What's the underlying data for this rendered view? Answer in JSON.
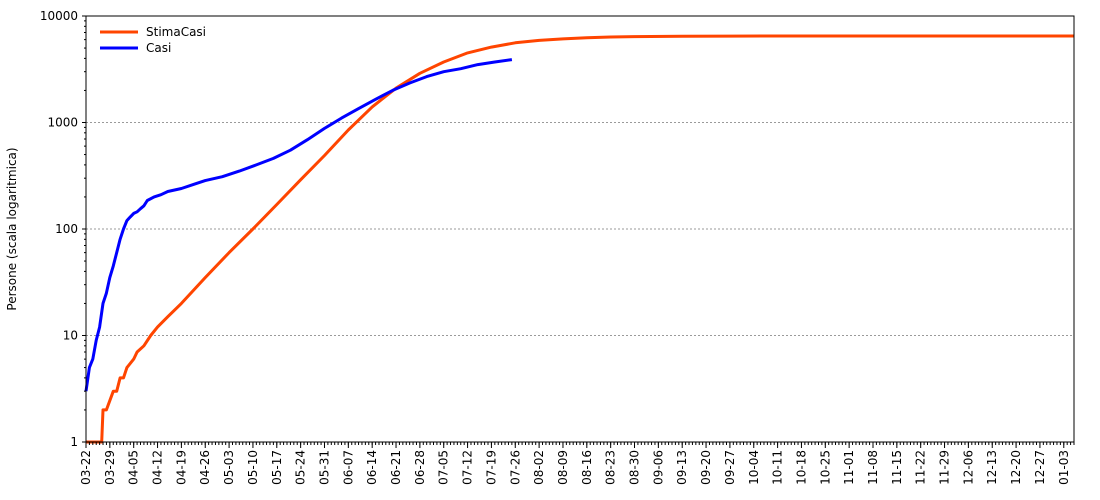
{
  "chart_data": {
    "type": "line",
    "title": "",
    "xlabel": "",
    "ylabel": "Persone (scala logaritmica)",
    "yscale": "log",
    "ylim": [
      1,
      10000
    ],
    "y_ticks": [
      1,
      10,
      100,
      1000,
      10000
    ],
    "y_tick_labels": [
      "1",
      "10",
      "100",
      "1000",
      "10000"
    ],
    "x_range_days": [
      0,
      290
    ],
    "x_ticks": [
      "03-22",
      "03-29",
      "04-05",
      "04-12",
      "04-19",
      "04-26",
      "05-03",
      "05-10",
      "05-17",
      "05-24",
      "05-31",
      "06-07",
      "06-14",
      "06-21",
      "06-28",
      "07-05",
      "07-12",
      "07-19",
      "07-26",
      "08-02",
      "08-09",
      "08-16",
      "08-23",
      "08-30",
      "09-06",
      "09-13",
      "09-20",
      "09-27",
      "10-04",
      "10-11",
      "10-18",
      "10-25",
      "11-01",
      "11-08",
      "11-15",
      "11-22",
      "11-29",
      "12-06",
      "12-13",
      "12-20",
      "12-27",
      "01-03"
    ],
    "grid": "horizontal-dotted",
    "legend_position": "top-left",
    "series": [
      {
        "name": "StimaCasi",
        "color": "#ff4500",
        "x": [
          0,
          3,
          4,
          4.6,
          5,
          6,
          8,
          9,
          10,
          11,
          12,
          14,
          15,
          17,
          19,
          21,
          24,
          28,
          35,
          42,
          49,
          56,
          63,
          70,
          77,
          84,
          91,
          98,
          105,
          112,
          119,
          126,
          133,
          140,
          147,
          154,
          161,
          175,
          189,
          210,
          230,
          250,
          270,
          290
        ],
        "y": [
          1,
          1,
          1,
          1,
          2,
          2,
          3,
          3,
          4,
          4,
          5,
          6,
          7,
          8,
          10,
          12,
          15,
          20,
          35,
          60,
          100,
          170,
          290,
          490,
          850,
          1400,
          2100,
          2900,
          3700,
          4500,
          5100,
          5600,
          5900,
          6100,
          6250,
          6350,
          6400,
          6450,
          6480,
          6490,
          6490,
          6490,
          6490,
          6490
        ]
      },
      {
        "name": "Casi",
        "color": "#0000ff",
        "x": [
          0,
          1,
          2,
          3,
          4,
          5,
          6,
          7,
          8,
          9,
          10,
          11,
          12,
          13,
          14,
          15,
          16,
          17,
          18,
          20,
          22,
          24,
          28,
          32,
          35,
          40,
          45,
          50,
          55,
          60,
          65,
          70,
          75,
          80,
          85,
          90,
          95,
          100,
          105,
          110,
          115,
          120,
          125
        ],
        "y": [
          3,
          5,
          6,
          9,
          12,
          20,
          25,
          35,
          45,
          60,
          80,
          100,
          120,
          130,
          140,
          145,
          155,
          165,
          185,
          200,
          210,
          225,
          240,
          265,
          285,
          310,
          350,
          400,
          460,
          550,
          690,
          880,
          1100,
          1350,
          1650,
          2000,
          2350,
          2700,
          3000,
          3200,
          3500,
          3700,
          3900
        ]
      }
    ]
  }
}
